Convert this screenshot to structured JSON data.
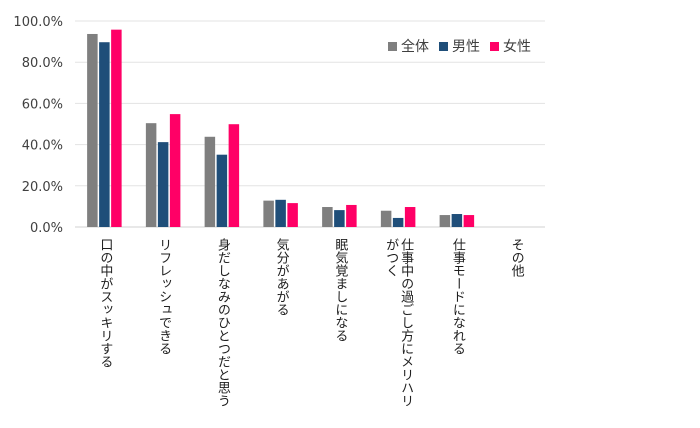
{
  "chart_data": {
    "type": "bar",
    "title": "",
    "categories": [
      "口の中がスッキリする",
      "リフレッシュできる",
      "身だしなみのひとつだと思う",
      "気分があがる",
      "眠気覚ましになる",
      "仕事中の過ごし方にメリハリがつく",
      "仕事モードになれる",
      "その他"
    ],
    "series": [
      {
        "name": "全体",
        "color": "#7f7f7f",
        "values": [
          93.7,
          50.4,
          43.8,
          12.8,
          9.7,
          7.9,
          5.8,
          0
        ]
      },
      {
        "name": "男性",
        "color": "#1f4e79",
        "values": [
          89.7,
          41.2,
          35.1,
          13.2,
          8.2,
          4.4,
          6.3,
          0
        ]
      },
      {
        "name": "女性",
        "color": "#ff0066",
        "values": [
          95.8,
          54.8,
          49.9,
          11.6,
          10.7,
          9.7,
          5.8,
          0
        ]
      }
    ],
    "ylim": [
      0,
      100
    ],
    "yticks": [
      "0.0%",
      "20.0%",
      "40.0%",
      "60.0%",
      "80.0%",
      "100.0%"
    ],
    "grid": true,
    "legend": "top-right",
    "xlabel": "",
    "ylabel": ""
  }
}
